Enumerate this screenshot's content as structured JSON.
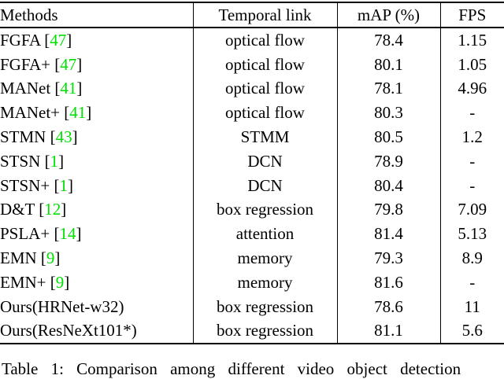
{
  "table": {
    "columns": [
      {
        "label": "Methods"
      },
      {
        "label": "Temporal link"
      },
      {
        "label": "mAP (%)"
      },
      {
        "label": "FPS"
      }
    ],
    "rows": [
      {
        "method": "FGFA",
        "cite": "47",
        "temporal_link": "optical flow",
        "map": "78.4",
        "fps": "1.15"
      },
      {
        "method": "FGFA+",
        "cite": "47",
        "temporal_link": "optical flow",
        "map": "80.1",
        "fps": "1.05"
      },
      {
        "method": "MANet",
        "cite": "41",
        "temporal_link": "optical flow",
        "map": "78.1",
        "fps": "4.96"
      },
      {
        "method": "MANet+",
        "cite": "41",
        "temporal_link": "optical flow",
        "map": "80.3",
        "fps": "-"
      },
      {
        "method": "STMN",
        "cite": "43",
        "temporal_link": "STMM",
        "map": "80.5",
        "fps": "1.2"
      },
      {
        "method": "STSN",
        "cite": "1",
        "temporal_link": "DCN",
        "map": "78.9",
        "fps": "-"
      },
      {
        "method": "STSN+",
        "cite": "1",
        "temporal_link": "DCN",
        "map": "80.4",
        "fps": "-"
      },
      {
        "method": "D&T",
        "cite": "12",
        "temporal_link": "box regression",
        "map": "79.8",
        "fps": "7.09"
      },
      {
        "method": "PSLA+",
        "cite": "14",
        "temporal_link": "attention",
        "map": "81.4",
        "fps": "5.13"
      },
      {
        "method": "EMN",
        "cite": "9",
        "temporal_link": "memory",
        "map": "79.3",
        "fps": "8.9"
      },
      {
        "method": "EMN+",
        "cite": "9",
        "temporal_link": "memory",
        "map": "81.6",
        "fps": "-"
      },
      {
        "method": "Ours(HRNet-w32)",
        "cite": null,
        "temporal_link": "box regression",
        "map": "78.6",
        "fps": "11"
      },
      {
        "method": "Ours(ResNeXt101*)",
        "cite": null,
        "temporal_link": "box regression",
        "map": "81.1",
        "fps": "5.6"
      }
    ]
  },
  "caption": {
    "text": "Table 1: Comparison among different video object detection"
  },
  "colors": {
    "citation_green": "#00e000",
    "text": "#000000",
    "background": "#ffffff"
  }
}
